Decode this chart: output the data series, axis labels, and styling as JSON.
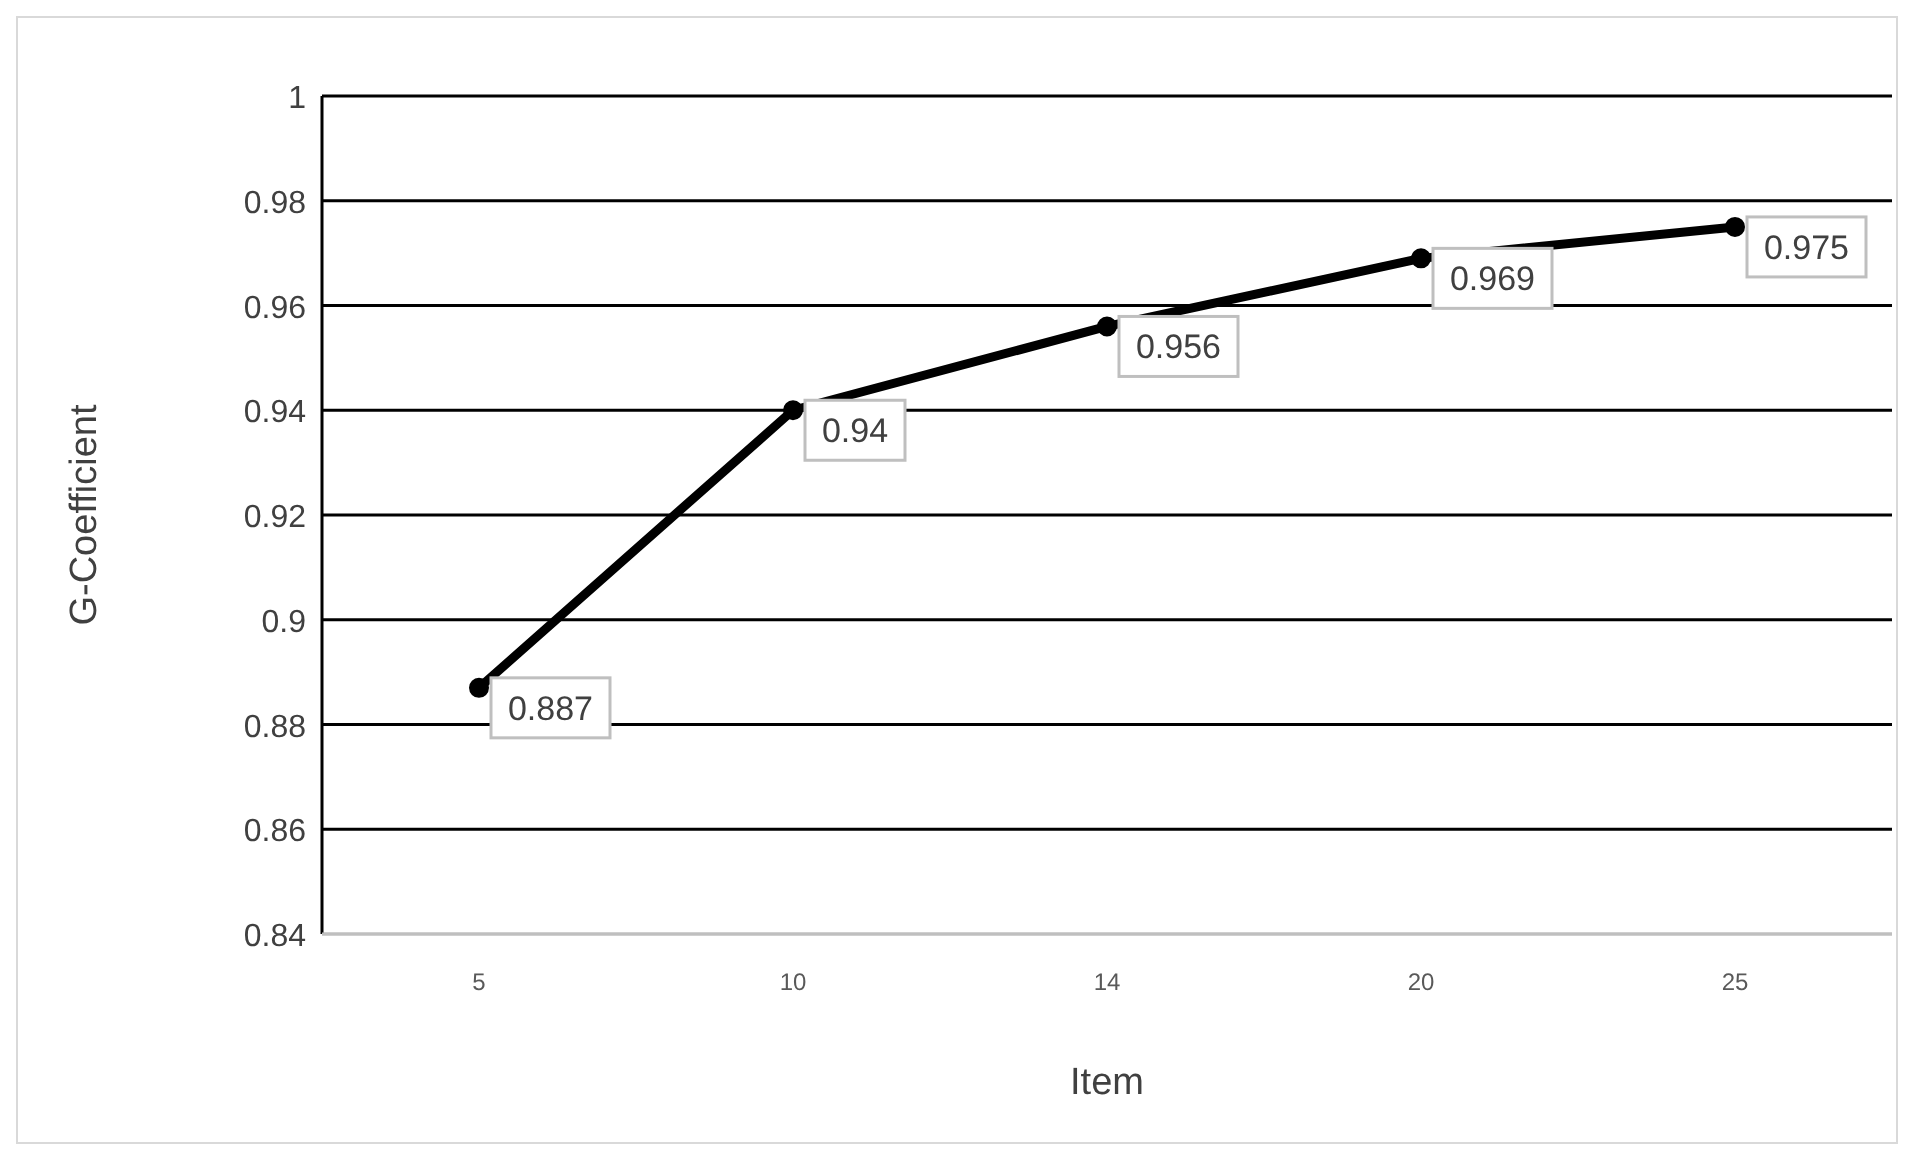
{
  "chart_data": {
    "type": "line",
    "xlabel": "Item",
    "ylabel": "G-Coefficient",
    "categories": [
      "5",
      "10",
      "14",
      "20",
      "25"
    ],
    "series": [
      {
        "color": "#000000",
        "values": [
          0.887,
          0.94,
          0.956,
          0.969,
          0.975
        ]
      }
    ],
    "ylim": [
      0.84,
      1
    ],
    "yticks": [
      0.84,
      0.86,
      0.88,
      0.9,
      0.92,
      0.94,
      0.96,
      0.98,
      1
    ],
    "grid": "y",
    "marker": "circle",
    "data_labels": true
  }
}
